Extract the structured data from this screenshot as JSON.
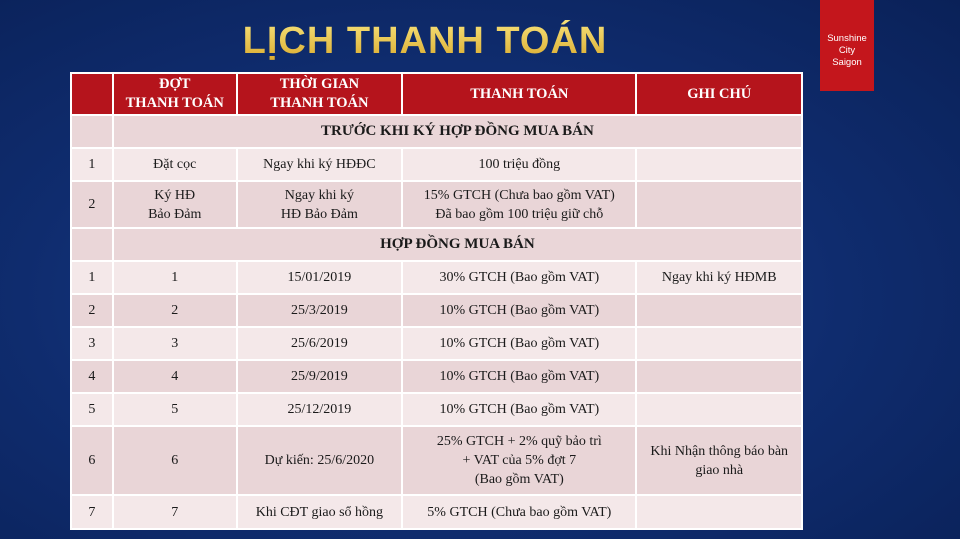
{
  "title": "LỊCH THANH TOÁN",
  "logo": [
    "Sunshine",
    "City",
    "Saigon"
  ],
  "headers": [
    "",
    "ĐỢT\nTHANH TOÁN",
    "THỜI GIAN\nTHANH TOÁN",
    "THANH TOÁN",
    "GHI CHÚ"
  ],
  "sections": [
    {
      "title": "TRƯỚC KHI KÝ HỢP ĐỒNG MUA BÁN",
      "rows": [
        [
          "1",
          "Đặt cọc",
          "Ngay khi ký HĐĐC",
          "100 triệu đồng",
          ""
        ],
        [
          "2",
          "Ký HĐ\nBảo Đảm",
          "Ngay khi ký\nHĐ Bảo Đảm",
          "15% GTCH (Chưa bao gồm VAT)\nĐã bao gồm 100 triệu giữ chỗ",
          ""
        ]
      ]
    },
    {
      "title": "HỢP ĐỒNG MUA BÁN",
      "rows": [
        [
          "1",
          "1",
          "15/01/2019",
          "30% GTCH (Bao gồm VAT)",
          "Ngay khi ký HĐMB"
        ],
        [
          "2",
          "2",
          "25/3/2019",
          "10% GTCH (Bao gồm VAT)",
          ""
        ],
        [
          "3",
          "3",
          "25/6/2019",
          "10% GTCH (Bao gồm VAT)",
          ""
        ],
        [
          "4",
          "4",
          "25/9/2019",
          "10% GTCH (Bao gồm VAT)",
          ""
        ],
        [
          "5",
          "5",
          "25/12/2019",
          "10% GTCH (Bao gồm VAT)",
          ""
        ],
        [
          "6",
          "6",
          "Dự kiến: 25/6/2020",
          "25% GTCH + 2% quỹ bảo trì\n+ VAT của 5% đợt 7\n(Bao gồm VAT)",
          "Khi Nhận thông báo bàn\ngiao nhà"
        ],
        [
          "7",
          "7",
          "Khi CĐT giao sổ hồng",
          "5% GTCH  (Chưa bao gồm VAT)",
          ""
        ]
      ]
    }
  ]
}
